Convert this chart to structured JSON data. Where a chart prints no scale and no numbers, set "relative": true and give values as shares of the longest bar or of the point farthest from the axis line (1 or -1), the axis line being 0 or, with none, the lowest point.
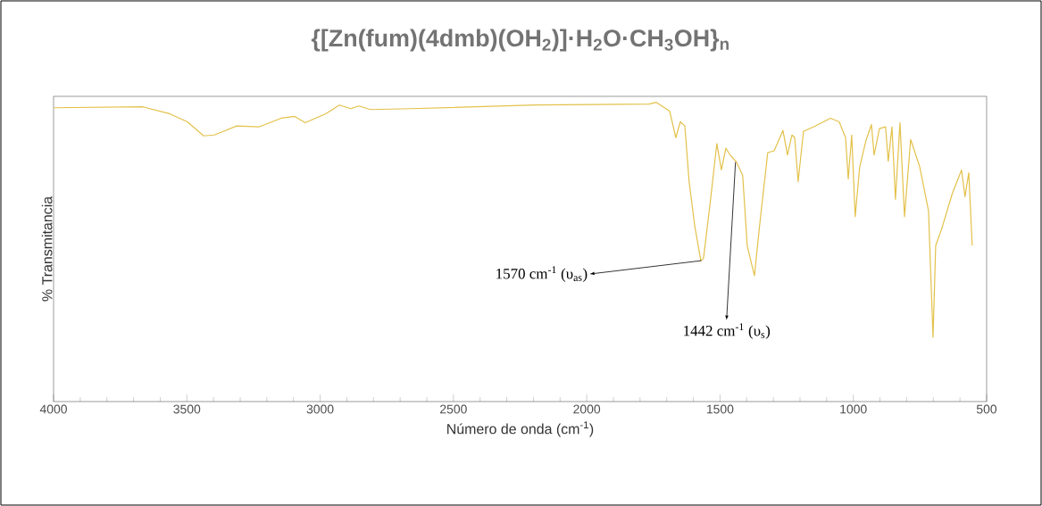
{
  "chart_data": {
    "type": "line",
    "title": "{[Zn(fum)(4dmb)(OH$_{2}$)]·H$_{2}$O·CH$_{3}$OH}$_{n}$",
    "xlabel": "Número  de onda (cm$^{-1}$)",
    "ylabel": "% Transmitancia",
    "relative": true,
    "color": "#e3c14a",
    "x": [
      4000,
      3665,
      3565,
      3498,
      3437,
      3397,
      3313,
      3230,
      3146,
      3096,
      3056,
      2979,
      2928,
      2885,
      2855,
      2811,
      2660,
      2192,
      1766,
      1739,
      1689,
      1666,
      1649,
      1632,
      1616,
      1595,
      1572,
      1562,
      1538,
      1512,
      1495,
      1478,
      1462,
      1438,
      1415,
      1398,
      1371,
      1348,
      1321,
      1297,
      1264,
      1247,
      1230,
      1220,
      1207,
      1187,
      1143,
      1086,
      1053,
      1029,
      1019,
      1006,
      993,
      976,
      952,
      932,
      922,
      902,
      879,
      869,
      855,
      842,
      825,
      808,
      785,
      751,
      718,
      701,
      691,
      668,
      628,
      594,
      581,
      567,
      554
    ],
    "values": [
      0.982,
      0.985,
      0.962,
      0.935,
      0.888,
      0.891,
      0.921,
      0.918,
      0.947,
      0.953,
      0.932,
      0.962,
      0.991,
      0.979,
      0.988,
      0.976,
      0.979,
      0.991,
      0.994,
      1.0,
      0.971,
      0.882,
      0.935,
      0.921,
      0.735,
      0.588,
      0.471,
      0.479,
      0.656,
      0.862,
      0.774,
      0.847,
      0.824,
      0.8,
      0.756,
      0.521,
      0.421,
      0.618,
      0.832,
      0.838,
      0.906,
      0.824,
      0.891,
      0.882,
      0.735,
      0.903,
      0.921,
      0.947,
      0.935,
      0.882,
      0.744,
      0.891,
      0.618,
      0.785,
      0.874,
      0.926,
      0.824,
      0.912,
      0.918,
      0.803,
      0.918,
      0.676,
      0.932,
      0.618,
      0.876,
      0.785,
      0.638,
      0.215,
      0.521,
      0.579,
      0.697,
      0.774,
      0.685,
      0.765,
      0.521
    ],
    "xlim": [
      4000,
      500
    ],
    "xticks": [
      4000,
      3500,
      3000,
      2500,
      2000,
      1500,
      1000,
      500
    ],
    "annotations": [
      {
        "text": "1570 cm$^{-1}$ (υ$_{as}$)",
        "x": 1570,
        "y": 0.471
      },
      {
        "text": "1442 cm$^{-1}$ (υ$_{s}$)",
        "x": 1442,
        "y": 0.8
      }
    ]
  }
}
